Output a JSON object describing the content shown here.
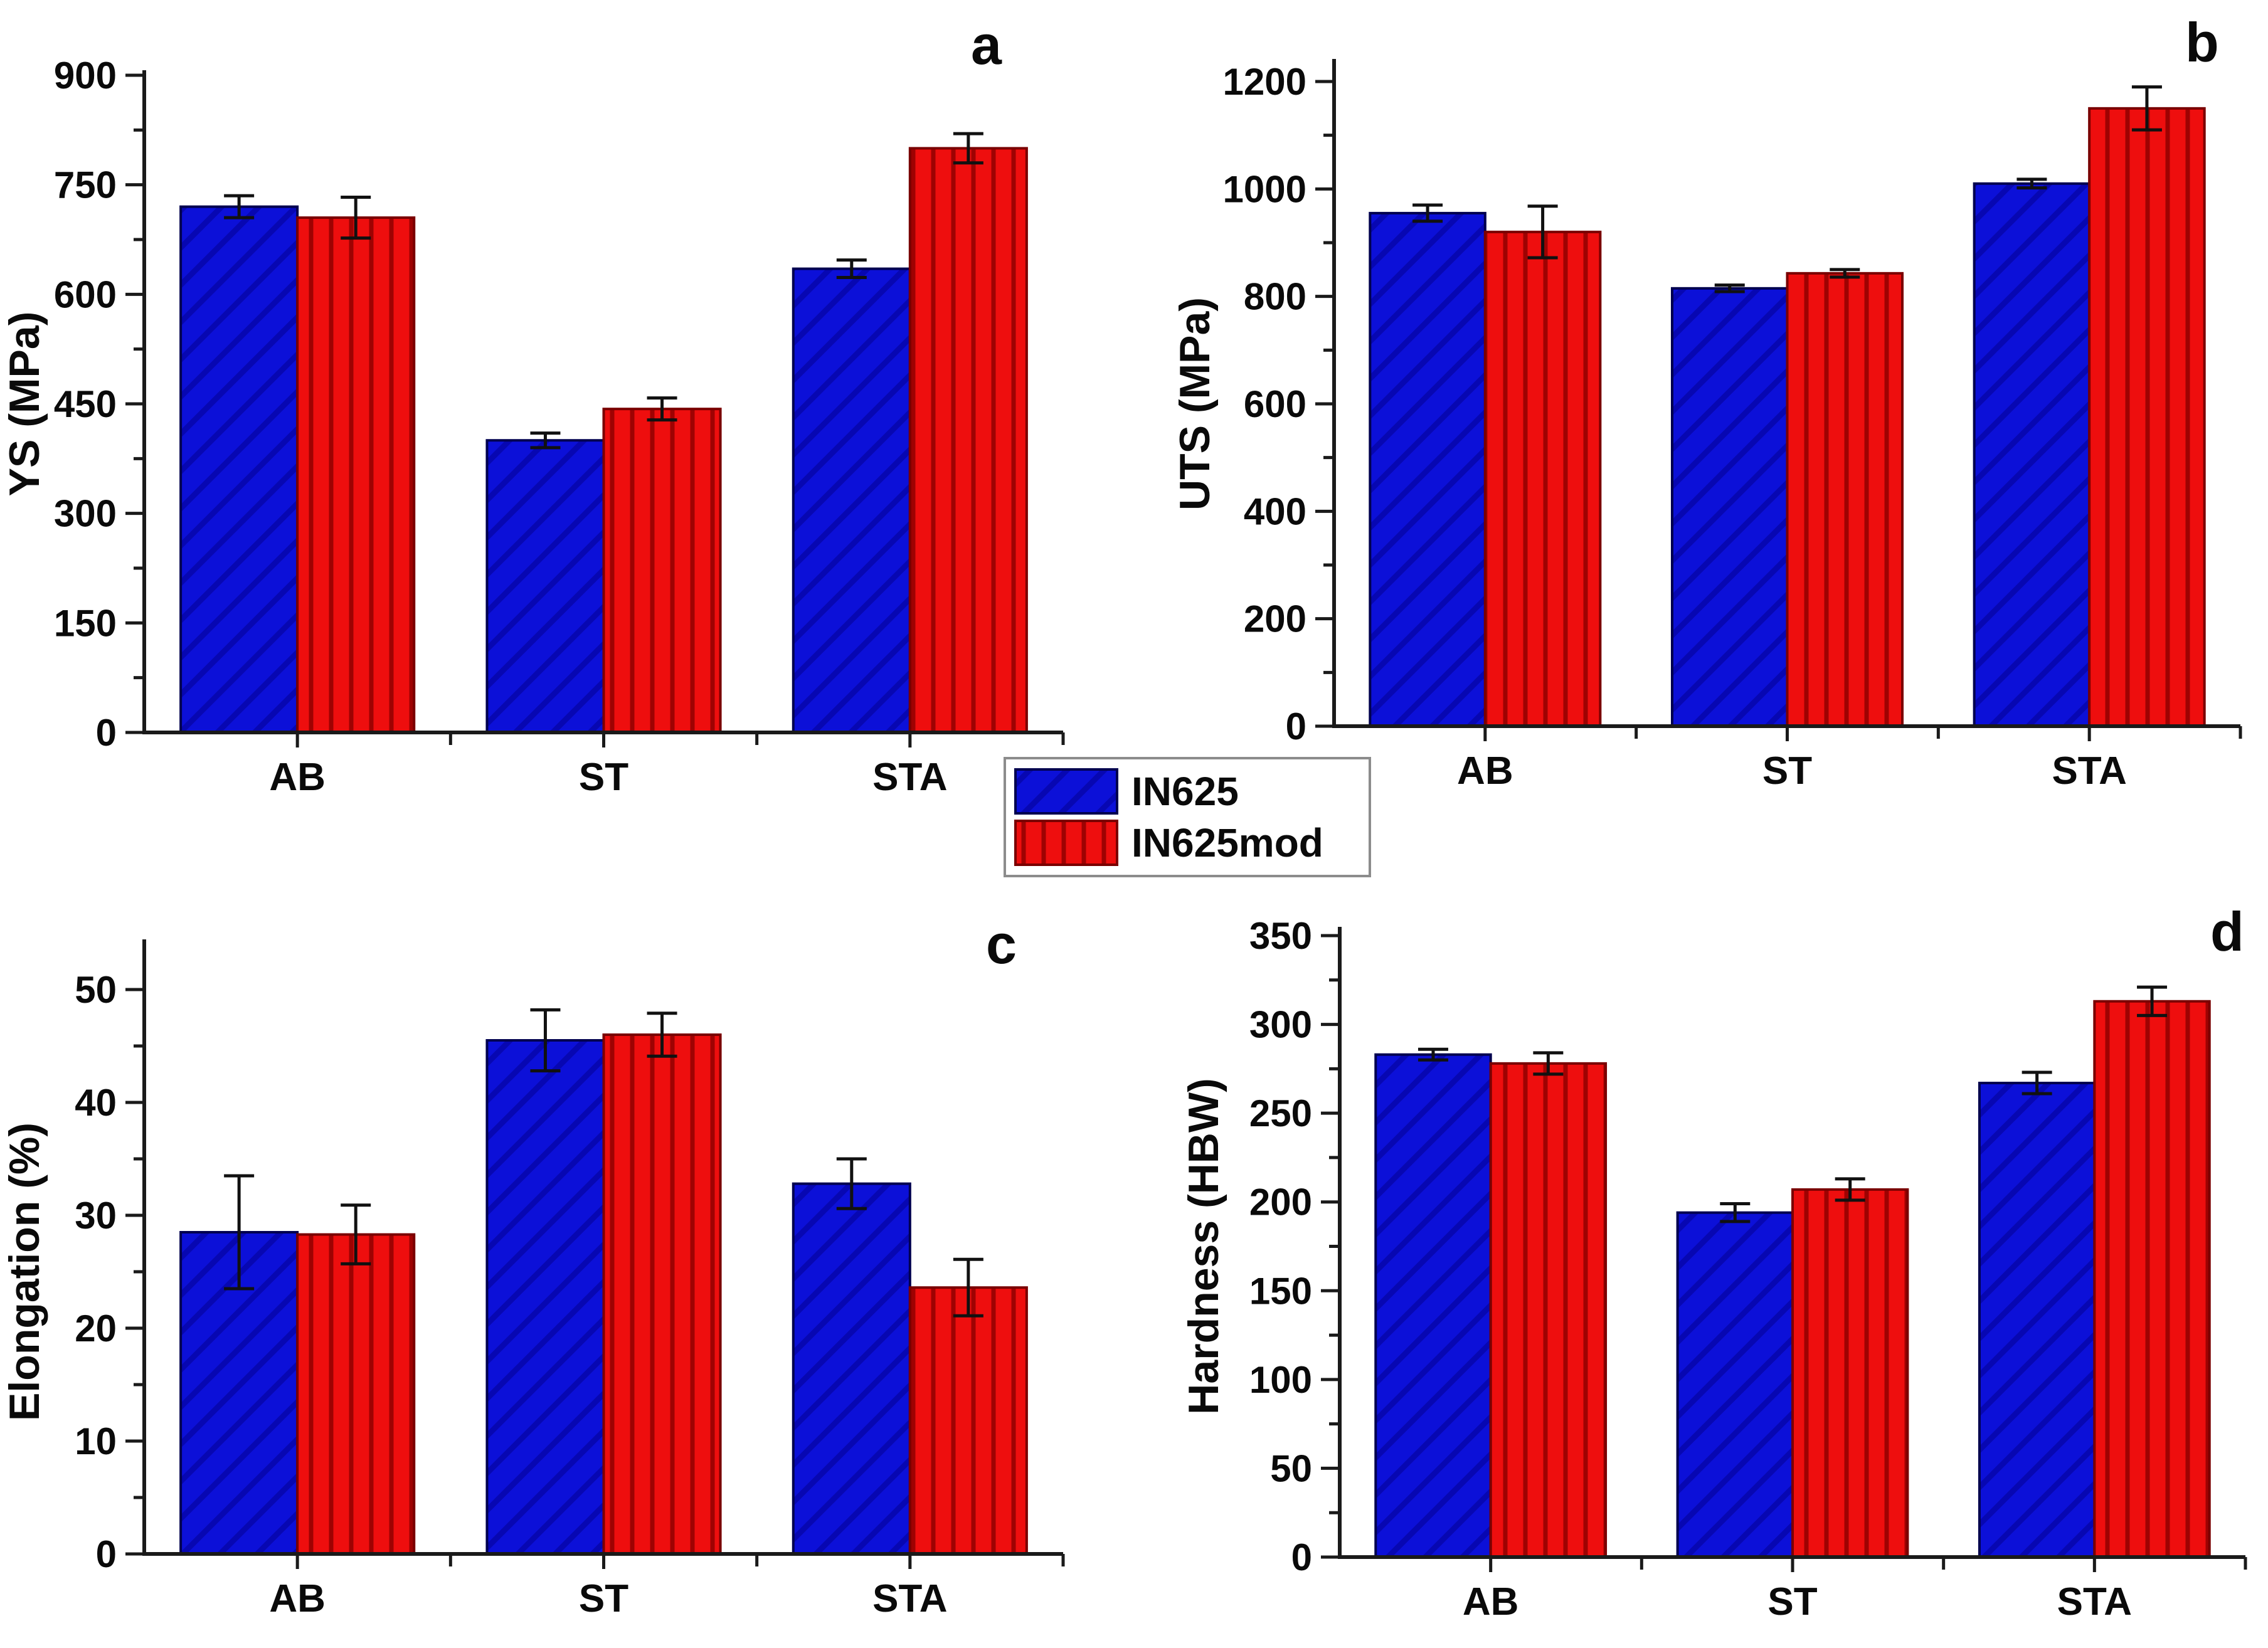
{
  "legend": {
    "items": [
      {
        "label": "IN625",
        "series_key": "in625"
      },
      {
        "label": "IN625mod",
        "series_key": "in625mod"
      }
    ]
  },
  "style": {
    "in625_fill": "#0c10d8",
    "in625_edge": "#01014f",
    "in625_hatch": "#0707b2",
    "in625_hatch_style": "diagonal",
    "in625mod_fill": "#ee0e0e",
    "in625mod_edge": "#7a0000",
    "in625mod_hatch": "#9e0202",
    "in625mod_hatch_style": "vertical",
    "axis_color": "#1a1a1a",
    "error_bar_color": "#111111",
    "text_color": "#0a0a0a",
    "legend_border": "#8c8c8c",
    "background": "#ffffff"
  },
  "chart_data": [
    {
      "panel_letter": "a",
      "type": "bar",
      "ylabel": "YS (MPa)",
      "xlabel": "",
      "categories": [
        "AB",
        "ST",
        "STA"
      ],
      "ylim": [
        0,
        930
      ],
      "yticks": [
        0,
        150,
        300,
        450,
        600,
        750,
        900
      ],
      "minor_tick_step": 75,
      "grid": false,
      "legend_position": "below-figure-center",
      "series": [
        {
          "name": "IN625",
          "values": [
            720,
            400,
            635
          ],
          "errors": [
            15,
            10,
            12
          ]
        },
        {
          "name": "IN625mod",
          "values": [
            705,
            443,
            800
          ],
          "errors": [
            28,
            15,
            20
          ]
        }
      ]
    },
    {
      "panel_letter": "b",
      "type": "bar",
      "ylabel": "UTS (MPa)",
      "xlabel": "",
      "categories": [
        "AB",
        "ST",
        "STA"
      ],
      "ylim": [
        0,
        1245
      ],
      "yticks": [
        0,
        200,
        400,
        600,
        800,
        1000,
        1200
      ],
      "minor_tick_step": 100,
      "grid": false,
      "series": [
        {
          "name": "IN625",
          "values": [
            955,
            815,
            1010
          ],
          "errors": [
            15,
            6,
            8
          ]
        },
        {
          "name": "IN625mod",
          "values": [
            920,
            843,
            1150
          ],
          "errors": [
            48,
            7,
            40
          ]
        }
      ]
    },
    {
      "panel_letter": "c",
      "type": "bar",
      "ylabel": "Elongation (%)",
      "xlabel": "",
      "categories": [
        "AB",
        "ST",
        "STA"
      ],
      "ylim": [
        0,
        54.5
      ],
      "yticks": [
        0,
        10,
        20,
        30,
        40,
        50
      ],
      "minor_tick_step": 5,
      "grid": false,
      "series": [
        {
          "name": "IN625",
          "values": [
            28.5,
            45.5,
            32.8
          ],
          "errors": [
            5,
            2.7,
            2.2
          ]
        },
        {
          "name": "IN625mod",
          "values": [
            28.3,
            46,
            23.6
          ],
          "errors": [
            2.6,
            1.9,
            2.5
          ]
        }
      ]
    },
    {
      "panel_letter": "d",
      "type": "bar",
      "ylabel": "Hardness (HBW)",
      "xlabel": "",
      "categories": [
        "AB",
        "ST",
        "STA"
      ],
      "ylim": [
        0,
        362
      ],
      "yticks": [
        0,
        50,
        100,
        150,
        200,
        250,
        300,
        350
      ],
      "minor_tick_step": 25,
      "grid": false,
      "series": [
        {
          "name": "IN625",
          "values": [
            283,
            194,
            267
          ],
          "errors": [
            3,
            5,
            6
          ]
        },
        {
          "name": "IN625mod",
          "values": [
            278,
            207,
            313
          ],
          "errors": [
            6,
            6,
            8
          ]
        }
      ]
    }
  ]
}
